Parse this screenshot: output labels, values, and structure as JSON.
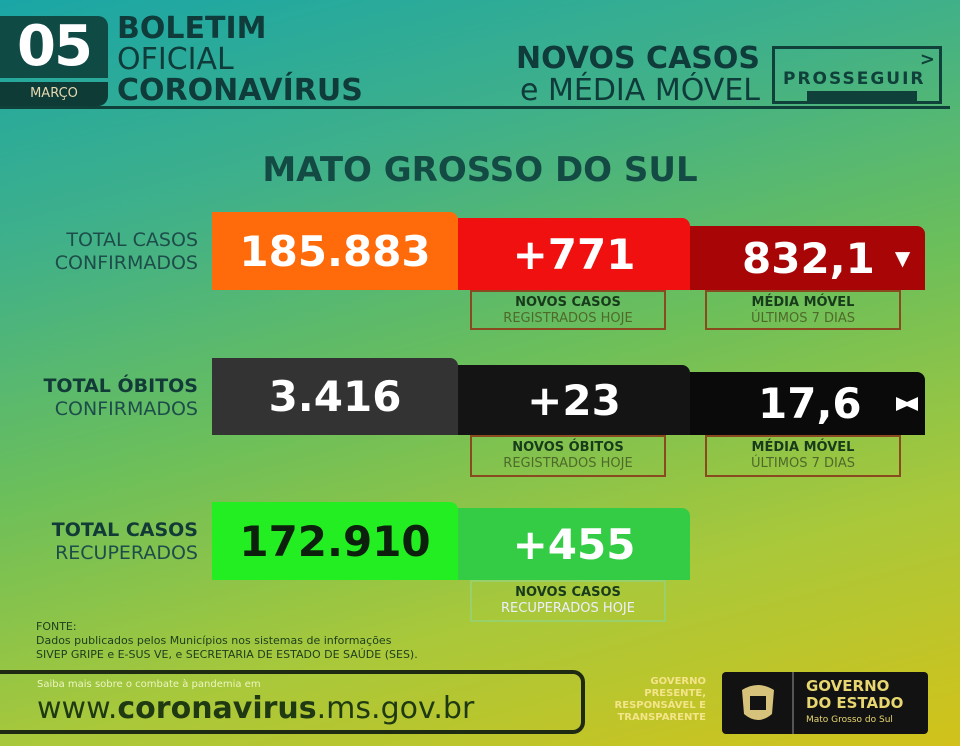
{
  "header": {
    "day": "05",
    "month": "MARÇO",
    "line1": "BOLETIM",
    "line2": "OFICIAL",
    "line3": "CORONAVÍRUS",
    "right_line1": "NOVOS CASOS",
    "right_line2": "e MÉDIA MÓVEL",
    "badge": "PROSSEGUIR"
  },
  "region": "MATO GROSSO DO SUL",
  "rows": [
    {
      "label1": "TOTAL CASOS",
      "label2": "CONFIRMADOS",
      "total": "185.883",
      "new": "+771",
      "new_cap1": "NOVOS CASOS",
      "new_cap2": "REGISTRADOS HOJE",
      "avg": "832,1",
      "avg_cap1": "MÉDIA MÓVEL",
      "avg_cap2": "ÚLTIMOS 7 DIAS",
      "trend": "down"
    },
    {
      "label1": "TOTAL ÓBITOS",
      "label2": "CONFIRMADOS",
      "total": "3.416",
      "new": "+23",
      "new_cap1": "NOVOS ÓBITOS",
      "new_cap2": "REGISTRADOS HOJE",
      "avg": "17,6",
      "avg_cap1": "MÉDIA MÓVEL",
      "avg_cap2": "ÚLTIMOS 7 DIAS",
      "trend": "stable"
    },
    {
      "label1": "TOTAL CASOS",
      "label2": "RECUPERADOS",
      "total": "172.910",
      "new": "+455",
      "new_cap1": "NOVOS CASOS",
      "new_cap2": "RECUPERADOS HOJE"
    }
  ],
  "footer": {
    "fonte_title": "FONTE:",
    "fonte_l1": "Dados publicados pelos Municípios nos sistemas de informações",
    "fonte_l2": "SIVEP GRIPE e E-SUS VE, e SECRETARIA DE ESTADO DE SAÚDE (SES).",
    "saiba": "Saiba mais sobre o combate à pandemia em",
    "url_pre": "www.",
    "url_bold": "coronavirus",
    "url_post": ".ms.gov.br",
    "slogan": [
      "GOVERNO",
      "PRESENTE,",
      "RESPONSÁVEL E",
      "TRANSPARENTE"
    ],
    "gov1": "GOVERNO",
    "gov2": "DO ESTADO",
    "gov3": "Mato Grosso do Sul"
  },
  "colors": {
    "orange": "#ff6a0a",
    "red": "#f01010",
    "darkred": "#a80606",
    "gray": "#333333",
    "black": "#0a0a0a",
    "green": "#22ee22",
    "green2": "#33cc44"
  }
}
